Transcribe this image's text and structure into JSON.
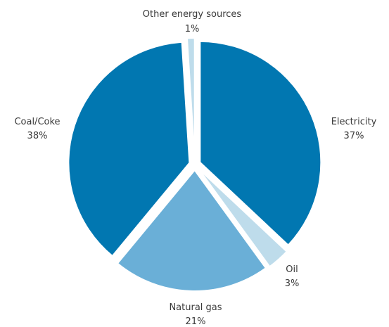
{
  "chart_data": {
    "type": "pie",
    "slices": [
      {
        "name": "Electricity",
        "percent_label": "37%",
        "value": 37,
        "color": "#0177b1"
      },
      {
        "name": "Oil",
        "percent_label": "3%",
        "value": 3,
        "color": "#bedceb"
      },
      {
        "name": "Natural gas",
        "percent_label": "21%",
        "value": 21,
        "color": "#6aafd7"
      },
      {
        "name": "Coal/Coke",
        "percent_label": "38%",
        "value": 38,
        "color": "#0177b1"
      },
      {
        "name": "Other energy sources",
        "percent_label": "1%",
        "value": 1,
        "color": "#bedceb"
      }
    ],
    "start_angle_deg": 0,
    "direction": "clockwise",
    "exploded": true,
    "legend": "none"
  }
}
